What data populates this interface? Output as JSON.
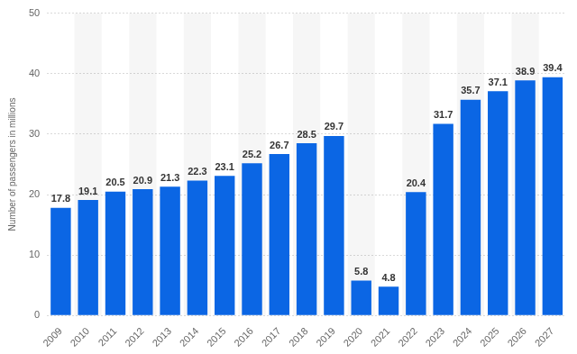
{
  "chart_data": {
    "type": "bar",
    "ylabel": "Number of passengers in millions",
    "categories": [
      "2009",
      "2010",
      "2011",
      "2012",
      "2013",
      "2014",
      "2015",
      "2016",
      "2017",
      "2018",
      "2019",
      "2020",
      "2021",
      "2022",
      "2023",
      "2024",
      "2025",
      "2026",
      "2027"
    ],
    "values": [
      17.8,
      19.1,
      20.5,
      20.9,
      21.3,
      22.3,
      23.1,
      25.2,
      26.7,
      28.5,
      29.7,
      5.8,
      4.8,
      20.4,
      31.7,
      35.7,
      37.1,
      38.9,
      39.4
    ],
    "color": "#0b66e4",
    "ylim": [
      0,
      50
    ],
    "yticks": [
      0,
      10,
      20,
      30,
      40,
      50
    ],
    "grid": true,
    "data_labels": true
  }
}
